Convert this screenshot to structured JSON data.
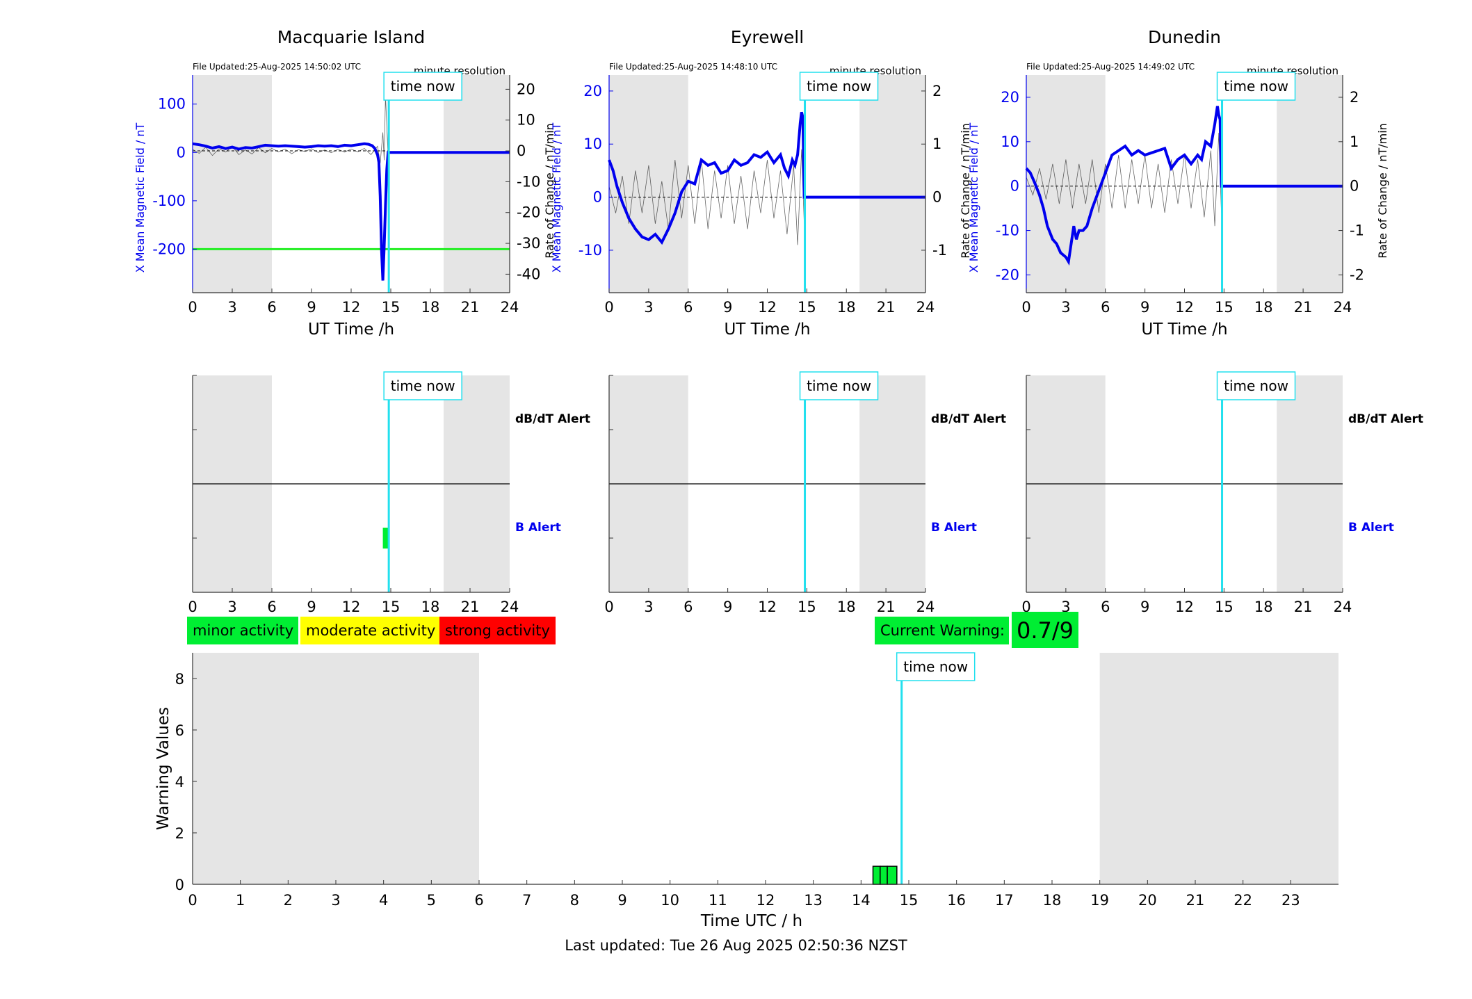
{
  "colors": {
    "field": "#0000ee",
    "rate": "#000000",
    "time_now": "#22e0ee",
    "shade": "#e5e5e5",
    "minor": "#00ee33",
    "moderate": "#ffff00",
    "strong": "#ff0000",
    "threshold": "#22ee22"
  },
  "legend": {
    "minor": "minor activity",
    "moderate": "moderate activity",
    "strong": "strong activity"
  },
  "current_warning": {
    "label": "Current Warning:",
    "value": "0.7/9"
  },
  "time_now_label": "time now",
  "footer": "Last updated: Tue 26 Aug 2025 02:50:36 NZST",
  "chart_data": [
    {
      "type": "line",
      "title": "Macquarie Island",
      "file_updated": "File Updated:25-Aug-2025 14:50:02 UTC",
      "resolution": "minute resolution",
      "xlabel": "UT Time /h",
      "ylabel": "X Mean Magnetic Field / nT",
      "y2label": "Rate of Change / nT/min",
      "xlim": [
        0,
        24
      ],
      "xticks": [
        0,
        3,
        6,
        9,
        12,
        15,
        18,
        21,
        24
      ],
      "ylim": [
        -290,
        160
      ],
      "yticks": [
        100,
        0,
        -100,
        -200
      ],
      "y2lim": [
        -46,
        24.6
      ],
      "y2ticks": [
        20,
        10,
        0,
        -10,
        -20,
        -30,
        -40
      ],
      "shaded_x": [
        [
          0,
          6
        ],
        [
          19,
          24
        ]
      ],
      "time_now": 14.85,
      "threshold": -200,
      "series": [
        {
          "axis": "left",
          "x": [
            0,
            0.5,
            1,
            1.5,
            2,
            2.5,
            3,
            3.5,
            4,
            4.5,
            5,
            5.5,
            6,
            6.5,
            7,
            7.5,
            8,
            8.5,
            9,
            9.5,
            10,
            10.5,
            11,
            11.5,
            12,
            12.5,
            13,
            13.3,
            13.6,
            13.8,
            14,
            14.1,
            14.2,
            14.3,
            14.4,
            14.5,
            14.6,
            14.7,
            14.8,
            14.85,
            14.9,
            16,
            18,
            20,
            22,
            24
          ],
          "y": [
            18,
            16,
            13,
            9,
            12,
            8,
            11,
            7,
            10,
            9,
            12,
            15,
            14,
            13,
            14,
            13,
            12,
            11,
            12,
            14,
            13,
            14,
            12,
            15,
            14,
            16,
            18,
            17,
            14,
            8,
            -5,
            -20,
            -90,
            -200,
            -265,
            -195,
            -110,
            -35,
            0,
            0,
            0,
            0,
            0,
            0,
            0,
            0
          ]
        },
        {
          "axis": "right",
          "x": [
            0,
            0.5,
            1,
            1.5,
            2,
            2.5,
            3,
            3.5,
            4,
            4.5,
            5,
            5.5,
            6,
            6.5,
            7,
            7.5,
            8,
            8.5,
            9,
            9.5,
            10,
            10.5,
            11,
            11.5,
            12,
            12.5,
            13,
            13.5,
            14,
            14.2,
            14.4,
            14.5,
            14.6,
            14.7,
            14.8
          ],
          "y": [
            0.5,
            -0.8,
            1.2,
            -1.5,
            0.7,
            -0.4,
            1.5,
            -1.2,
            0.3,
            -1.0,
            1.1,
            -0.6,
            0.8,
            -0.3,
            0.6,
            -0.9,
            0.4,
            -0.2,
            0.7,
            -0.5,
            0.3,
            -0.6,
            0.5,
            -0.4,
            0.6,
            -0.3,
            0.8,
            -1.2,
            1.5,
            -4,
            6,
            -3,
            18,
            8,
            -2
          ]
        }
      ]
    },
    {
      "type": "line",
      "title": "Eyrewell",
      "file_updated": "File Updated:25-Aug-2025 14:48:10 UTC",
      "resolution": "minute resolution",
      "xlabel": "UT Time /h",
      "ylabel": "X Mean Magnetic Field / nT",
      "y2label": "Rate of Change / nT/min",
      "xlim": [
        0,
        24
      ],
      "xticks": [
        0,
        3,
        6,
        9,
        12,
        15,
        18,
        21,
        24
      ],
      "ylim": [
        -18,
        23
      ],
      "yticks": [
        20,
        10,
        0,
        -10
      ],
      "y2lim": [
        -1.8,
        2.3
      ],
      "y2ticks": [
        2,
        1,
        0,
        -1
      ],
      "shaded_x": [
        [
          0,
          6
        ],
        [
          19,
          24
        ]
      ],
      "time_now": 14.85,
      "series": [
        {
          "axis": "left",
          "x": [
            0,
            0.3,
            0.6,
            1,
            1.5,
            2,
            2.5,
            3,
            3.5,
            4,
            4.5,
            5,
            5.5,
            6,
            6.5,
            7,
            7.5,
            8,
            8.5,
            9,
            9.5,
            10,
            10.5,
            11,
            11.5,
            12,
            12.5,
            13,
            13.3,
            13.6,
            13.9,
            14.1,
            14.3,
            14.5,
            14.6,
            14.7,
            14.8,
            15,
            18,
            21,
            24
          ],
          "y": [
            7,
            5,
            2,
            -1,
            -4,
            -6,
            -7.5,
            -8,
            -7,
            -8.5,
            -6,
            -3,
            1,
            3,
            2.5,
            7,
            6,
            6.5,
            4.5,
            5,
            7,
            6,
            6.5,
            8,
            7.5,
            8.5,
            6.5,
            8,
            5.5,
            4,
            7,
            6,
            8,
            14,
            16,
            15,
            0,
            0,
            0,
            0,
            0
          ]
        },
        {
          "axis": "right",
          "x": [
            0,
            0.5,
            1,
            1.5,
            2,
            2.5,
            3,
            3.5,
            4,
            4.5,
            5,
            5.5,
            6,
            6.5,
            7,
            7.5,
            8,
            8.5,
            9,
            9.5,
            10,
            10.5,
            11,
            11.5,
            12,
            12.5,
            13,
            13.5,
            14,
            14.3,
            14.6,
            14.8
          ],
          "y": [
            0.2,
            -0.3,
            0.4,
            -0.5,
            0.5,
            -0.3,
            0.6,
            -0.5,
            0.3,
            -0.6,
            0.7,
            -0.4,
            0.6,
            -0.5,
            0.7,
            -0.6,
            0.5,
            -0.4,
            0.6,
            -0.5,
            0.4,
            -0.6,
            0.5,
            -0.3,
            0.7,
            -0.4,
            0.5,
            -0.7,
            0.6,
            -0.9,
            0.9,
            -0.5
          ]
        }
      ]
    },
    {
      "type": "line",
      "title": "Dunedin",
      "file_updated": "File Updated:25-Aug-2025 14:49:02 UTC",
      "resolution": "minute resolution",
      "xlabel": "UT Time /h",
      "ylabel": "X Mean Magnetic Field / nT",
      "y2label": "Rate of Change / nT/min",
      "xlim": [
        0,
        24
      ],
      "xticks": [
        0,
        3,
        6,
        9,
        12,
        15,
        18,
        21,
        24
      ],
      "ylim": [
        -24,
        25
      ],
      "yticks": [
        20,
        10,
        0,
        -10,
        -20
      ],
      "y2lim": [
        -2.4,
        2.5
      ],
      "y2ticks": [
        2,
        1,
        0,
        -1,
        -2
      ],
      "shaded_x": [
        [
          0,
          6
        ],
        [
          19,
          24
        ]
      ],
      "time_now": 14.85,
      "series": [
        {
          "axis": "left",
          "x": [
            0,
            0.3,
            0.6,
            1,
            1.3,
            1.6,
            2,
            2.3,
            2.6,
            3,
            3.2,
            3.4,
            3.6,
            3.8,
            4,
            4.3,
            4.6,
            5,
            5.5,
            6,
            6.5,
            7,
            7.5,
            8,
            8.5,
            9,
            9.5,
            10,
            10.5,
            11,
            11.5,
            12,
            12.5,
            13,
            13.3,
            13.6,
            14,
            14.3,
            14.5,
            14.6,
            14.7,
            14.8,
            15,
            18,
            21,
            24
          ],
          "y": [
            4,
            3,
            1,
            -2,
            -5,
            -9,
            -12,
            -13,
            -15,
            -16,
            -17,
            -13,
            -9,
            -12,
            -10,
            -10,
            -9,
            -5,
            -1,
            3,
            7,
            8,
            9,
            7,
            8,
            7,
            7.5,
            8,
            8.5,
            4,
            6,
            7,
            5,
            7,
            6,
            10,
            9,
            14,
            18,
            16,
            15,
            0,
            0,
            0,
            0,
            0
          ]
        },
        {
          "axis": "right",
          "x": [
            0,
            0.5,
            1,
            1.5,
            2,
            2.5,
            3,
            3.5,
            4,
            4.5,
            5,
            5.5,
            6,
            6.5,
            7,
            7.5,
            8,
            8.5,
            9,
            9.5,
            10,
            10.5,
            11,
            11.5,
            12,
            12.5,
            13,
            13.5,
            14,
            14.3,
            14.6,
            14.8
          ],
          "y": [
            0.2,
            -0.2,
            0.4,
            -0.3,
            0.5,
            -0.4,
            0.6,
            -0.5,
            0.5,
            -0.4,
            0.6,
            -0.6,
            0.5,
            -0.5,
            0.7,
            -0.5,
            0.6,
            -0.4,
            0.7,
            -0.5,
            0.5,
            -0.6,
            0.6,
            -0.4,
            0.7,
            -0.5,
            0.6,
            -0.7,
            0.8,
            -0.9,
            1.2,
            -0.6
          ]
        }
      ]
    },
    {
      "type": "bar",
      "panel": "alerts",
      "xlim": [
        0,
        24
      ],
      "xticks": [
        0,
        3,
        6,
        9,
        12,
        15,
        18,
        21,
        24
      ],
      "shaded_x": [
        [
          0,
          6
        ],
        [
          19,
          24
        ]
      ],
      "time_now": 14.85,
      "row_labels": [
        "dB/dT Alert",
        "B Alert"
      ],
      "stations": [
        {
          "name": "Macquarie Island",
          "b_alert": [
            [
              14.4,
              14.9
            ]
          ],
          "dbdt_alert": []
        },
        {
          "name": "Eyrewell",
          "b_alert": [],
          "dbdt_alert": []
        },
        {
          "name": "Dunedin",
          "b_alert": [],
          "dbdt_alert": []
        }
      ]
    },
    {
      "type": "bar",
      "panel": "warning",
      "xlabel": "Time UTC / h",
      "ylabel": "Warning Values",
      "xlim": [
        0,
        24
      ],
      "xticks": [
        0,
        1,
        2,
        3,
        4,
        5,
        6,
        7,
        8,
        9,
        10,
        11,
        12,
        13,
        14,
        15,
        16,
        17,
        18,
        19,
        20,
        21,
        22,
        23
      ],
      "ylim": [
        0,
        9
      ],
      "yticks": [
        0,
        2,
        4,
        6,
        8
      ],
      "shaded_x": [
        [
          0,
          6
        ],
        [
          19,
          24
        ]
      ],
      "time_now": 14.85,
      "bars": [
        {
          "x0": 14.25,
          "x1": 14.4,
          "value": 0.7
        },
        {
          "x0": 14.4,
          "x1": 14.55,
          "value": 0.7
        },
        {
          "x0": 14.55,
          "x1": 14.75,
          "value": 0.7
        }
      ]
    }
  ]
}
